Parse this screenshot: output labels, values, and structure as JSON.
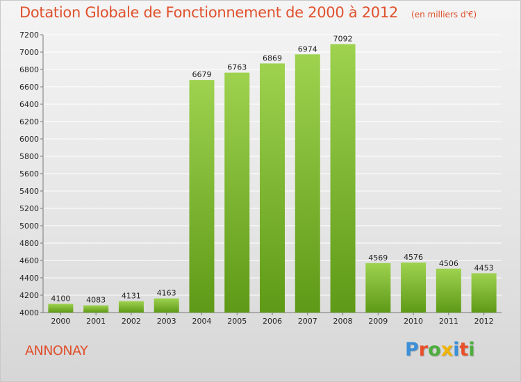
{
  "header": {
    "title": "Dotation Globale de Fonctionnement de 2000 à 2012",
    "subtitle": "(en milliers d'€)"
  },
  "footer": {
    "commune": "ANNONAY",
    "logo_text": "Proxiti",
    "logo_colors": [
      "#3a8fd8",
      "#e8502a",
      "#4cae3c",
      "#f0b400",
      "#3a8fd8",
      "#e8502a",
      "#4cae3c"
    ]
  },
  "colors": {
    "bar_top": "#9ed24f",
    "bar_bottom": "#5e9a17",
    "title": "#e0502c"
  },
  "chart_data": {
    "type": "bar",
    "title": "Dotation Globale de Fonctionnement de 2000 à 2012",
    "subtitle": "(en milliers d'€)",
    "categories": [
      "2000",
      "2001",
      "2002",
      "2003",
      "2004",
      "2005",
      "2006",
      "2007",
      "2008",
      "2009",
      "2010",
      "2011",
      "2012"
    ],
    "values": [
      4100,
      4083,
      4131,
      4163,
      6679,
      6763,
      6869,
      6974,
      7092,
      4569,
      4576,
      4506,
      4453
    ],
    "ylim": [
      4000,
      7200
    ],
    "yticks": [
      4000,
      4200,
      4400,
      4600,
      4800,
      5000,
      5200,
      5400,
      5600,
      5800,
      6000,
      6200,
      6400,
      6600,
      6800,
      7000,
      7200
    ],
    "grid": true,
    "xlabel": "",
    "ylabel": ""
  }
}
